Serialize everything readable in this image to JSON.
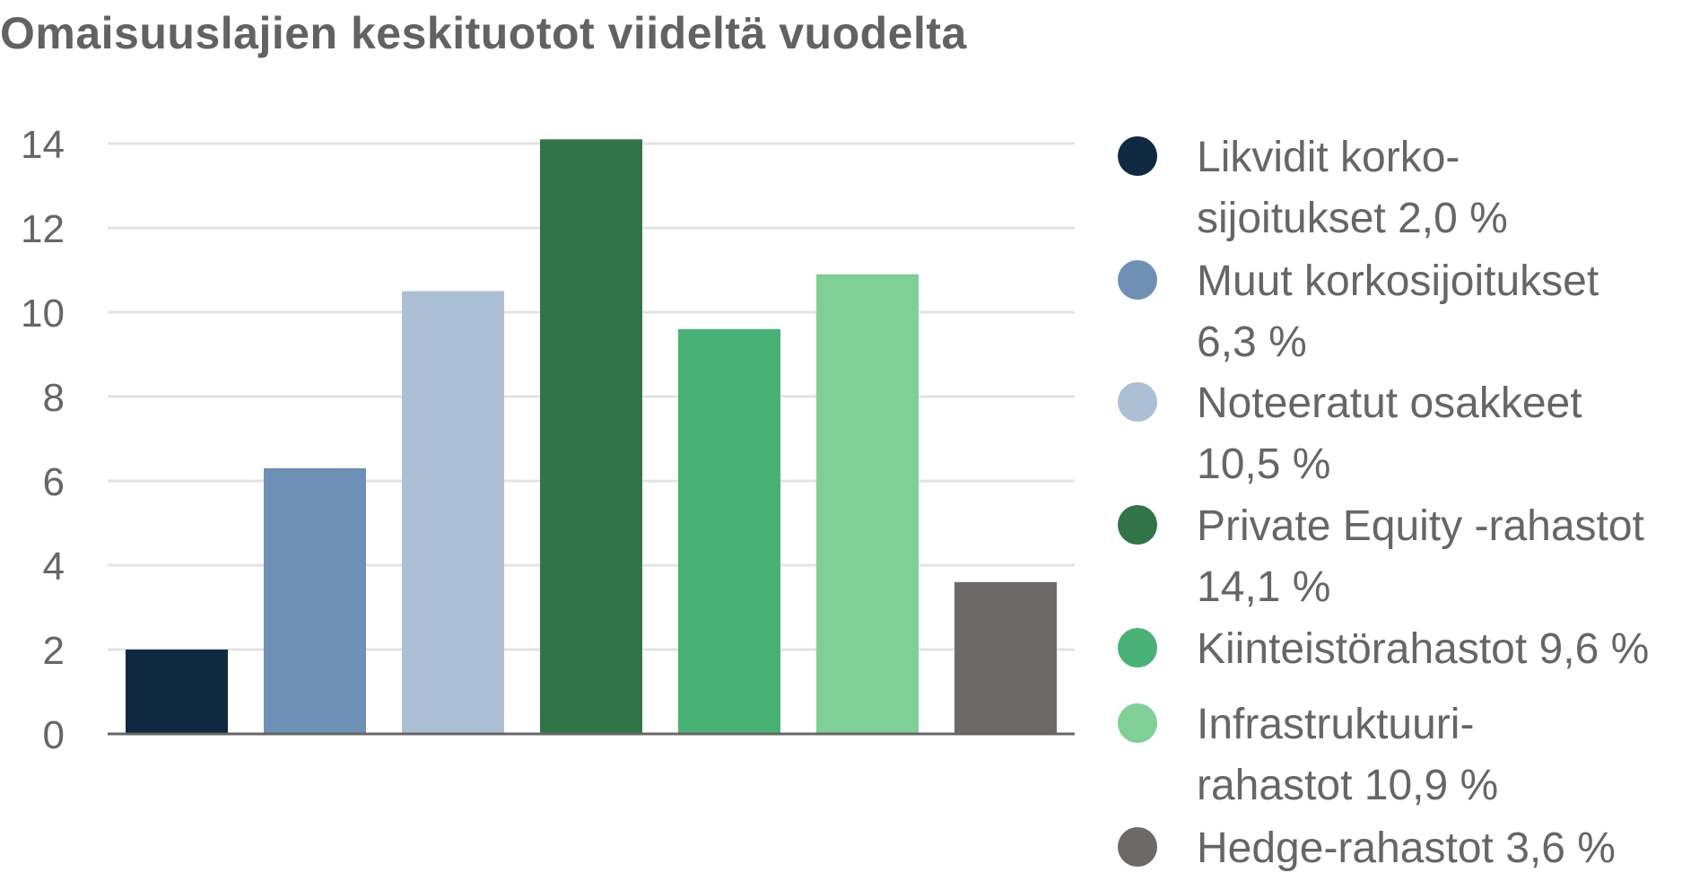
{
  "title": "Omaisuuslajien keskituotot viideltä vuodelta",
  "chart_data": {
    "type": "bar",
    "title": "Omaisuuslajien keskituotot viideltä vuodelta",
    "categories": [
      "Likvidit korko-\nsijoitukset 2,0 %",
      "Muut korkosijoitukset\n6,3 %",
      "Noteeratut osakkeet\n10,5 %",
      "Private Equity -rahastot\n14,1 %",
      "Kiinteistörahastot 9,6 %",
      "Infrastruktuuri-\nrahastot 10,9 %",
      "Hedge-rahastot 3,6 %"
    ],
    "values": [
      2.0,
      6.3,
      10.5,
      14.1,
      9.6,
      10.9,
      3.6
    ],
    "colors": [
      "#0f2a40",
      "#6f90b5",
      "#acbfd5",
      "#31744a",
      "#4ab176",
      "#80cf96",
      "#6c6968"
    ],
    "yticks": [
      "0",
      "2",
      "4",
      "6",
      "8",
      "10",
      "12",
      "14"
    ],
    "ylim": [
      0,
      14
    ],
    "grid": true,
    "legend_position": "right",
    "xlabel": "",
    "ylabel": ""
  }
}
